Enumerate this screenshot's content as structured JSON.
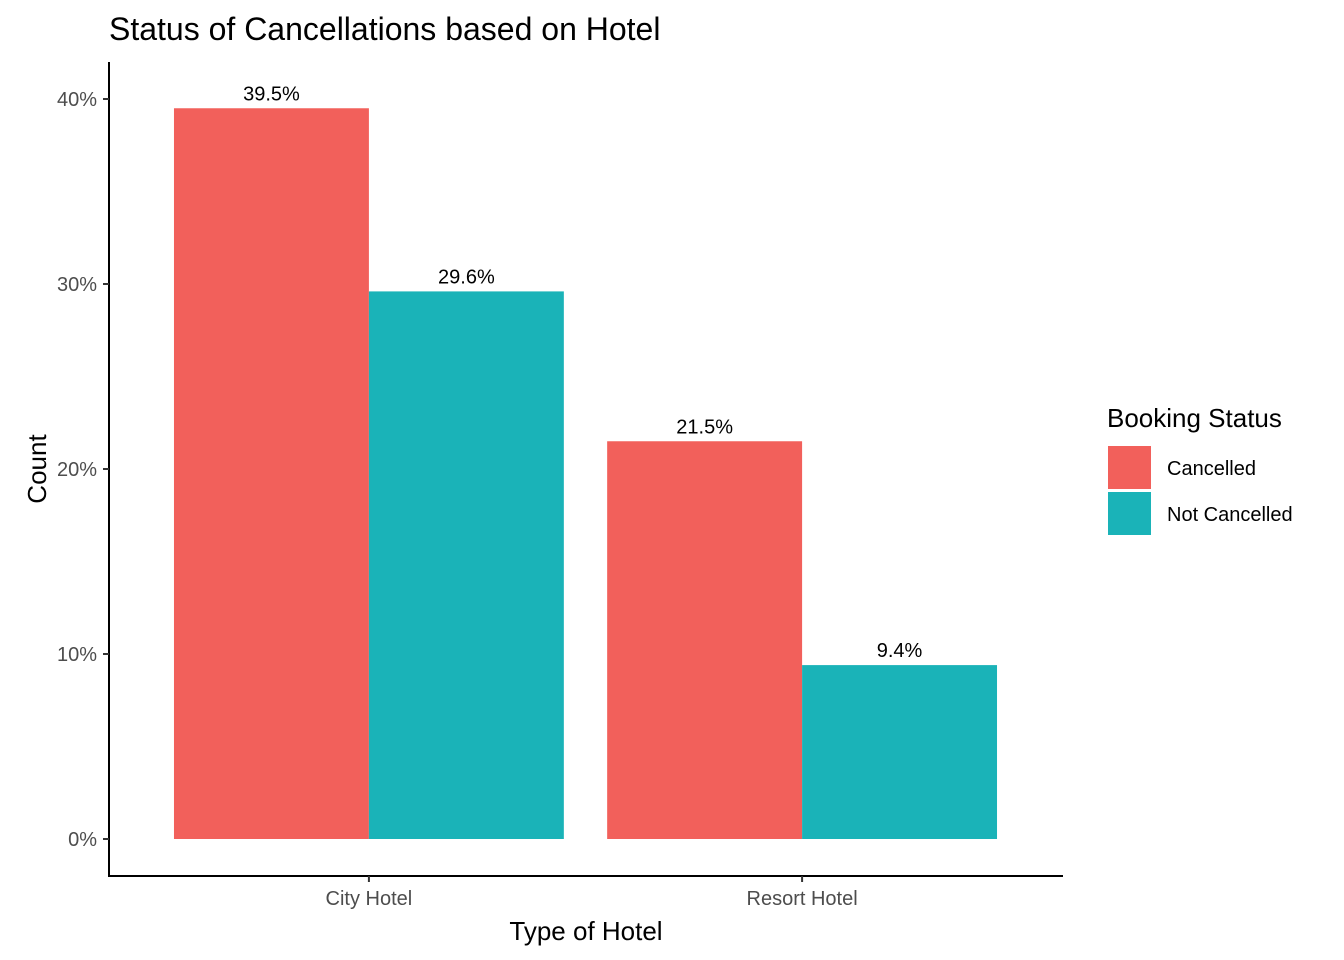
{
  "chart_data": {
    "type": "bar",
    "title": "Status of Cancellations based on Hotel",
    "xlabel": "Type of Hotel",
    "ylabel": "Count",
    "categories": [
      "City Hotel",
      "Resort Hotel"
    ],
    "series": [
      {
        "name": "Cancelled",
        "color": "#F2605B",
        "values": [
          39.5,
          21.5
        ],
        "labels": [
          "39.5%",
          "21.5%"
        ]
      },
      {
        "name": "Not Cancelled",
        "color": "#1AB3B8",
        "values": [
          29.6,
          9.4
        ],
        "labels": [
          "29.6%",
          "9.4%"
        ]
      }
    ],
    "ylim": [
      -2,
      42
    ],
    "yticks": [
      0,
      10,
      20,
      30,
      40
    ],
    "ytick_labels": [
      "0%",
      "10%",
      "20%",
      "30%",
      "40%"
    ],
    "legend": {
      "title": "Booking Status",
      "position": "right"
    },
    "grid": false
  }
}
